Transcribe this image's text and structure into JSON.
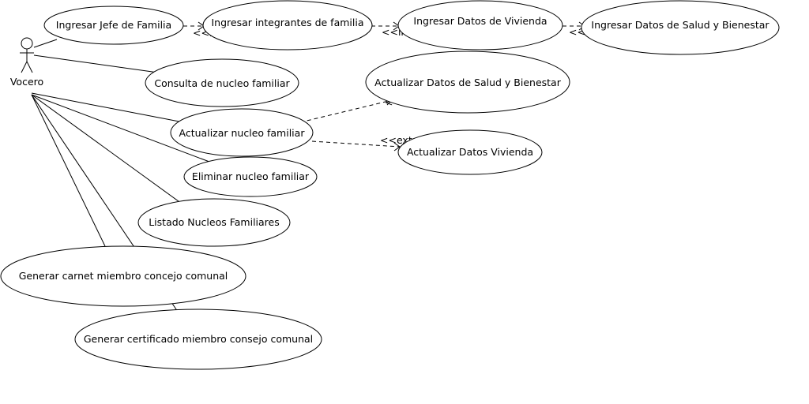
{
  "actor": {
    "name": "Vocero"
  },
  "use_cases": {
    "ingresar_jefe": "Ingresar Jefe de Familia",
    "ingresar_integrantes": "Ingresar integrantes de familia",
    "ingresar_vivienda": "Ingresar Datos de Vivienda",
    "ingresar_salud": "Ingresar Datos de Salud y Bienestar",
    "consulta": "Consulta de nucleo familiar",
    "actualizar_salud": "Actualizar Datos de Salud y Bienestar",
    "actualizar_nucleo": "Actualizar nucleo familiar",
    "actualizar_vivienda": "Actualizar Datos Vivienda",
    "eliminar": "Eliminar nucleo familiar",
    "listado": "Listado Nucleos Familiares",
    "carnet": "Generar carnet miembro concejo comunal",
    "certificado": "Generar certificado miembro consejo comunal"
  },
  "stereotypes": {
    "include": "<<include>>",
    "extend": "<<extend>>"
  }
}
